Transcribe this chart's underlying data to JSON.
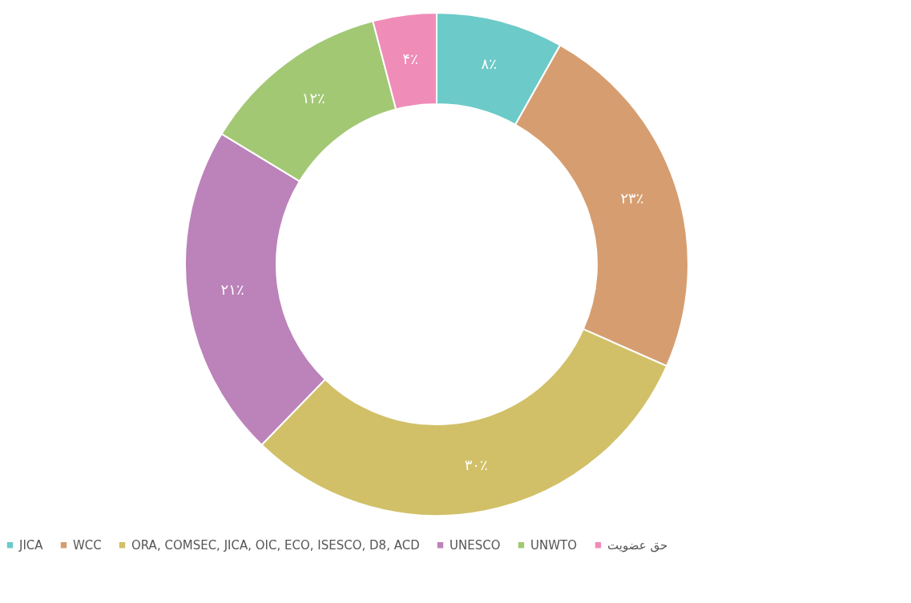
{
  "chart_data": {
    "type": "donut",
    "categories": [
      "JICA",
      "WCC",
      "ORA, COMSEC, JICA, OIC, ECO, ISESCO, D8, ACD",
      "UNESCO",
      "UNWTO",
      "حق عضویت"
    ],
    "values": [
      8,
      23,
      30,
      21,
      12,
      4
    ],
    "colors": [
      "#6ccac9",
      "#d69e70",
      "#d1c068",
      "#bc82ba",
      "#a2c874",
      "#f08cb8"
    ],
    "value_labels": [
      "۸٪",
      "۲۳٪",
      "۳۰٪",
      "۲۱٪",
      "۱۲٪",
      "۴٪"
    ],
    "legend": "bottom"
  }
}
